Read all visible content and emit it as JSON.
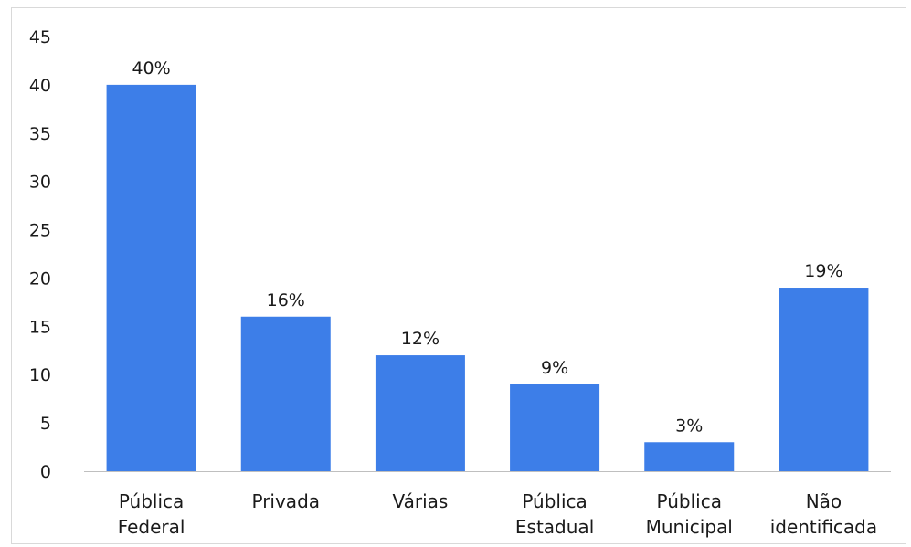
{
  "chart_data": {
    "type": "bar",
    "categories": [
      [
        "Pública",
        "Federal"
      ],
      [
        "Privada"
      ],
      [
        "Várias"
      ],
      [
        "Pública",
        "Estadual"
      ],
      [
        "Pública",
        "Municipal"
      ],
      [
        "Não",
        "identificada"
      ]
    ],
    "values": [
      40,
      16,
      12,
      9,
      3,
      19
    ],
    "data_labels": [
      "40%",
      "16%",
      "12%",
      "9%",
      "3%",
      "19%"
    ],
    "y_ticks": [
      "0",
      "5",
      "10",
      "15",
      "20",
      "25",
      "30",
      "35",
      "40",
      "45"
    ],
    "ylim": [
      0,
      45
    ],
    "grid": false,
    "legend": "none",
    "colors": {
      "bar": "#3d7ee8",
      "axis": "#bfbfbf",
      "frame": "#d9d9d9"
    }
  }
}
